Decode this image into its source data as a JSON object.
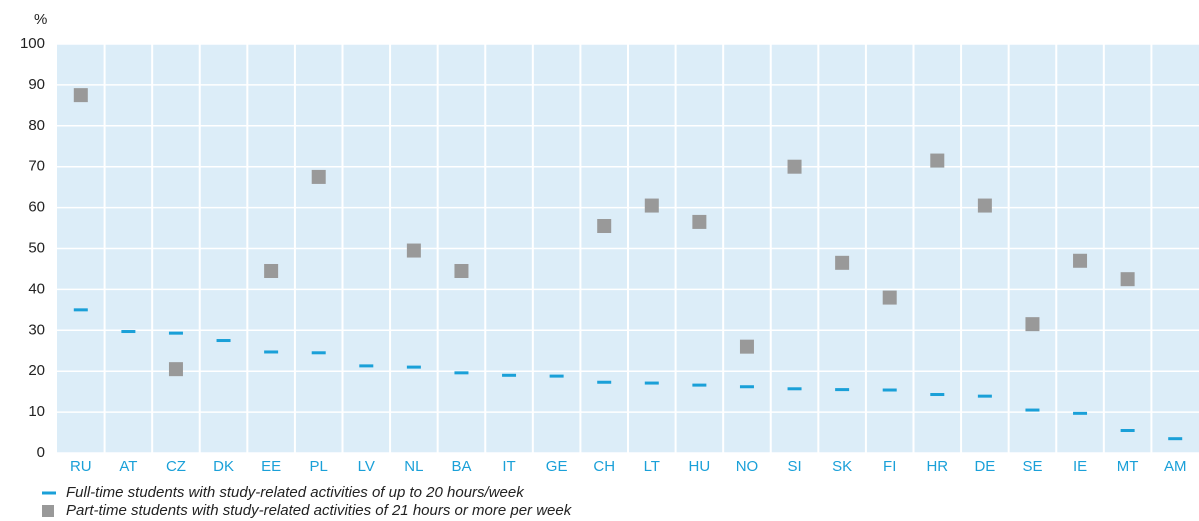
{
  "chart_data": {
    "type": "scatter",
    "y_label": "%",
    "categories": [
      "RU",
      "AT",
      "CZ",
      "DK",
      "EE",
      "PL",
      "LV",
      "NL",
      "BA",
      "IT",
      "GE",
      "CH",
      "LT",
      "HU",
      "NO",
      "SI",
      "SK",
      "FI",
      "HR",
      "DE",
      "SE",
      "IE",
      "MT",
      "AM"
    ],
    "series": [
      {
        "name": "Full-time students with study-related activities of up to 20 hours/week",
        "color": "#1aa0d8",
        "marker": "dash",
        "values": [
          35,
          29.7,
          29.3,
          27.5,
          24.7,
          24.5,
          21.3,
          21,
          19.6,
          19,
          18.8,
          17.3,
          17.1,
          16.6,
          16.2,
          15.7,
          15.5,
          15.4,
          14.3,
          13.9,
          10.5,
          9.7,
          5.5,
          3.5
        ]
      },
      {
        "name": "Part-time students with study-related activities of 21 hours or more per week",
        "color": "#999999",
        "marker": "square",
        "values": [
          87.5,
          null,
          20.5,
          null,
          44.5,
          67.5,
          null,
          49.5,
          44.5,
          null,
          null,
          55.5,
          60.5,
          56.5,
          26,
          70,
          46.5,
          38,
          71.5,
          60.5,
          31.5,
          47,
          42.5,
          null
        ]
      }
    ],
    "ylim": [
      0,
      100
    ],
    "yticks": [
      0,
      10,
      20,
      30,
      40,
      50,
      60,
      70,
      80,
      90,
      100
    ],
    "grid": true,
    "background": "#dcedf8"
  }
}
